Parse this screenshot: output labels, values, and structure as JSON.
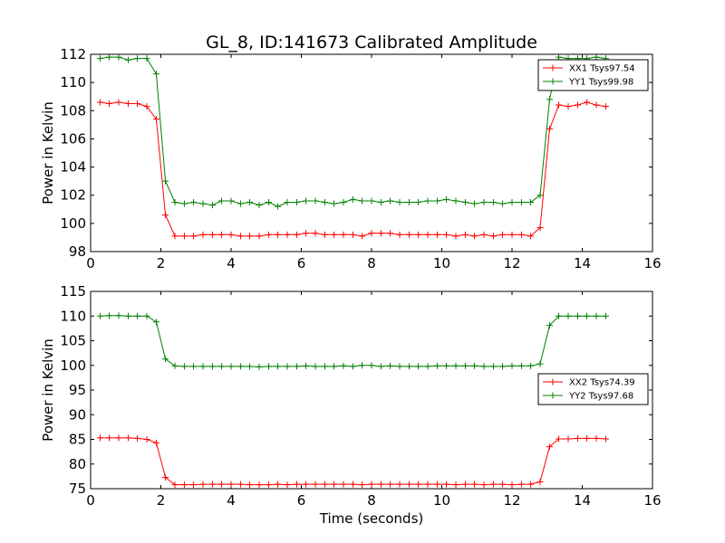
{
  "chart_data": [
    {
      "type": "line",
      "title": "GL_8, ID:141673 Calibrated Amplitude",
      "xlabel": "",
      "ylabel": "Power in Kelvin",
      "xlim": [
        0,
        16
      ],
      "ylim": [
        98,
        112
      ],
      "xticks": [
        0,
        2,
        4,
        6,
        8,
        10,
        12,
        14,
        16
      ],
      "yticks": [
        98,
        100,
        102,
        104,
        106,
        108,
        110,
        112
      ],
      "legend_position": "top-right",
      "x": [
        0.27,
        0.53,
        0.8,
        1.07,
        1.33,
        1.6,
        1.87,
        2.13,
        2.4,
        2.67,
        2.93,
        3.2,
        3.47,
        3.73,
        4.0,
        4.27,
        4.53,
        4.8,
        5.07,
        5.33,
        5.6,
        5.87,
        6.13,
        6.4,
        6.67,
        6.93,
        7.2,
        7.47,
        7.73,
        8.0,
        8.27,
        8.53,
        8.8,
        9.07,
        9.33,
        9.6,
        9.87,
        10.13,
        10.4,
        10.67,
        10.93,
        11.2,
        11.47,
        11.73,
        12.0,
        12.27,
        12.53,
        12.8,
        13.07,
        13.33,
        13.6,
        13.87,
        14.13,
        14.4,
        14.67
      ],
      "series": [
        {
          "name": "XX1 Tsys97.54",
          "color": "#ff0000",
          "values": [
            108.6,
            108.5,
            108.6,
            108.5,
            108.5,
            108.3,
            107.4,
            100.6,
            99.1,
            99.1,
            99.1,
            99.2,
            99.2,
            99.2,
            99.2,
            99.1,
            99.1,
            99.1,
            99.2,
            99.2,
            99.2,
            99.2,
            99.3,
            99.3,
            99.2,
            99.2,
            99.2,
            99.2,
            99.1,
            99.3,
            99.3,
            99.3,
            99.2,
            99.2,
            99.2,
            99.2,
            99.2,
            99.2,
            99.1,
            99.2,
            99.1,
            99.2,
            99.1,
            99.2,
            99.2,
            99.2,
            99.1,
            99.7,
            106.7,
            108.4,
            108.3,
            108.4,
            108.6,
            108.4,
            108.3
          ]
        },
        {
          "name": "YY1 Tsys99.98",
          "color": "#008000",
          "values": [
            111.7,
            111.8,
            111.8,
            111.6,
            111.7,
            111.7,
            110.6,
            103.0,
            101.5,
            101.4,
            101.5,
            101.4,
            101.3,
            101.6,
            101.6,
            101.4,
            101.5,
            101.3,
            101.5,
            101.2,
            101.5,
            101.5,
            101.6,
            101.6,
            101.5,
            101.4,
            101.5,
            101.7,
            101.6,
            101.6,
            101.5,
            101.6,
            101.5,
            101.5,
            101.5,
            101.6,
            101.6,
            101.7,
            101.6,
            101.5,
            101.4,
            101.5,
            101.5,
            101.4,
            101.5,
            101.5,
            101.5,
            102.0,
            108.8,
            111.8,
            111.7,
            111.7,
            111.7,
            111.8,
            111.7
          ]
        }
      ]
    },
    {
      "type": "line",
      "title": "",
      "xlabel": "Time (seconds)",
      "ylabel": "Power in Kelvin",
      "xlim": [
        0,
        16
      ],
      "ylim": [
        75,
        115
      ],
      "xticks": [
        0,
        2,
        4,
        6,
        8,
        10,
        12,
        14,
        16
      ],
      "yticks": [
        75,
        80,
        85,
        90,
        95,
        100,
        105,
        110,
        115
      ],
      "legend_position": "center-right",
      "x": [
        0.27,
        0.53,
        0.8,
        1.07,
        1.33,
        1.6,
        1.87,
        2.13,
        2.4,
        2.67,
        2.93,
        3.2,
        3.47,
        3.73,
        4.0,
        4.27,
        4.53,
        4.8,
        5.07,
        5.33,
        5.6,
        5.87,
        6.13,
        6.4,
        6.67,
        6.93,
        7.2,
        7.47,
        7.73,
        8.0,
        8.27,
        8.53,
        8.8,
        9.07,
        9.33,
        9.6,
        9.87,
        10.13,
        10.4,
        10.67,
        10.93,
        11.2,
        11.47,
        11.73,
        12.0,
        12.27,
        12.53,
        12.8,
        13.07,
        13.33,
        13.6,
        13.87,
        14.13,
        14.4,
        14.67
      ],
      "series": [
        {
          "name": "XX2 Tsys74.39",
          "color": "#ff0000",
          "values": [
            85.3,
            85.3,
            85.3,
            85.3,
            85.2,
            85.0,
            84.3,
            77.3,
            75.8,
            75.8,
            75.8,
            75.9,
            75.9,
            75.9,
            75.9,
            75.9,
            75.8,
            75.8,
            75.8,
            75.9,
            75.8,
            75.9,
            75.9,
            75.9,
            75.9,
            75.9,
            75.9,
            75.9,
            75.8,
            75.9,
            75.9,
            75.9,
            75.9,
            75.9,
            75.9,
            75.9,
            75.9,
            75.9,
            75.8,
            75.9,
            75.9,
            75.8,
            75.9,
            75.9,
            75.8,
            75.9,
            75.9,
            76.4,
            83.5,
            85.1,
            85.1,
            85.2,
            85.2,
            85.2,
            85.1
          ]
        },
        {
          "name": "YY2 Tsys97.68",
          "color": "#008000",
          "values": [
            110.0,
            110.1,
            110.1,
            110.0,
            110.0,
            110.0,
            108.8,
            101.3,
            99.9,
            99.8,
            99.8,
            99.8,
            99.8,
            99.8,
            99.8,
            99.8,
            99.8,
            99.7,
            99.8,
            99.8,
            99.8,
            99.8,
            99.9,
            99.8,
            99.8,
            99.8,
            99.9,
            99.8,
            100.0,
            100.0,
            99.8,
            99.9,
            99.8,
            99.8,
            99.8,
            99.8,
            99.9,
            99.9,
            99.9,
            99.9,
            99.9,
            99.8,
            99.8,
            99.8,
            99.9,
            99.9,
            99.9,
            100.3,
            108.1,
            110.0,
            110.0,
            110.0,
            110.0,
            110.0,
            110.0
          ]
        }
      ]
    }
  ]
}
